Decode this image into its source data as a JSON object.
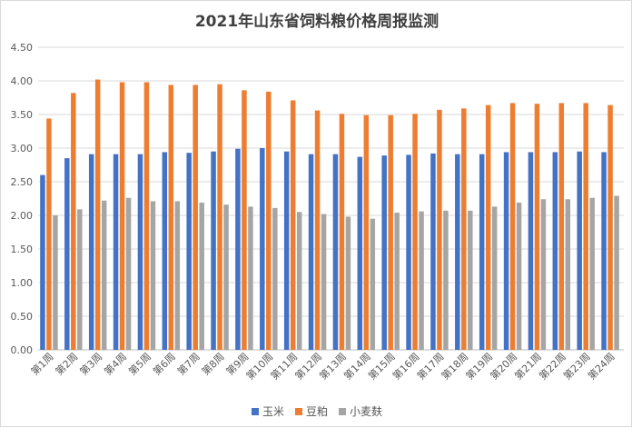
{
  "chart_data": {
    "type": "bar",
    "title": "2021年山东省饲料粮价格周报监测",
    "xlabel": "",
    "ylabel": "",
    "ylim": [
      0,
      4.5
    ],
    "yticks": [
      "0.00",
      "0.50",
      "1.00",
      "1.50",
      "2.00",
      "2.50",
      "3.00",
      "3.50",
      "4.00",
      "4.50"
    ],
    "grid": true,
    "legend_position": "bottom",
    "categories": [
      "第1周",
      "第2周",
      "第3周",
      "第4周",
      "第5周",
      "第6周",
      "第7周",
      "第8周",
      "第9周",
      "第10周",
      "第11周",
      "第12周",
      "第13周",
      "第14周",
      "第15周",
      "第16周",
      "第17周",
      "第18周",
      "第19周",
      "第20周",
      "第21周",
      "第22周",
      "第23周",
      "第24周"
    ],
    "series": [
      {
        "name": "玉米",
        "color": "#4472c4",
        "values": [
          2.6,
          2.85,
          2.91,
          2.91,
          2.91,
          2.94,
          2.93,
          2.95,
          2.99,
          3.0,
          2.95,
          2.91,
          2.91,
          2.87,
          2.89,
          2.9,
          2.92,
          2.91,
          2.91,
          2.94,
          2.94,
          2.94,
          2.95,
          2.94
        ]
      },
      {
        "name": "豆粕",
        "color": "#ed7d31",
        "values": [
          3.44,
          3.82,
          4.02,
          3.98,
          3.98,
          3.94,
          3.94,
          3.95,
          3.86,
          3.84,
          3.71,
          3.56,
          3.51,
          3.49,
          3.49,
          3.51,
          3.57,
          3.59,
          3.64,
          3.67,
          3.66,
          3.67,
          3.67,
          3.64
        ]
      },
      {
        "name": "小麦麸",
        "color": "#a5a5a5",
        "values": [
          2.0,
          2.09,
          2.22,
          2.26,
          2.21,
          2.21,
          2.19,
          2.16,
          2.13,
          2.11,
          2.05,
          2.02,
          1.98,
          1.95,
          2.04,
          2.06,
          2.07,
          2.07,
          2.13,
          2.19,
          2.24,
          2.24,
          2.26,
          2.29
        ]
      }
    ]
  }
}
